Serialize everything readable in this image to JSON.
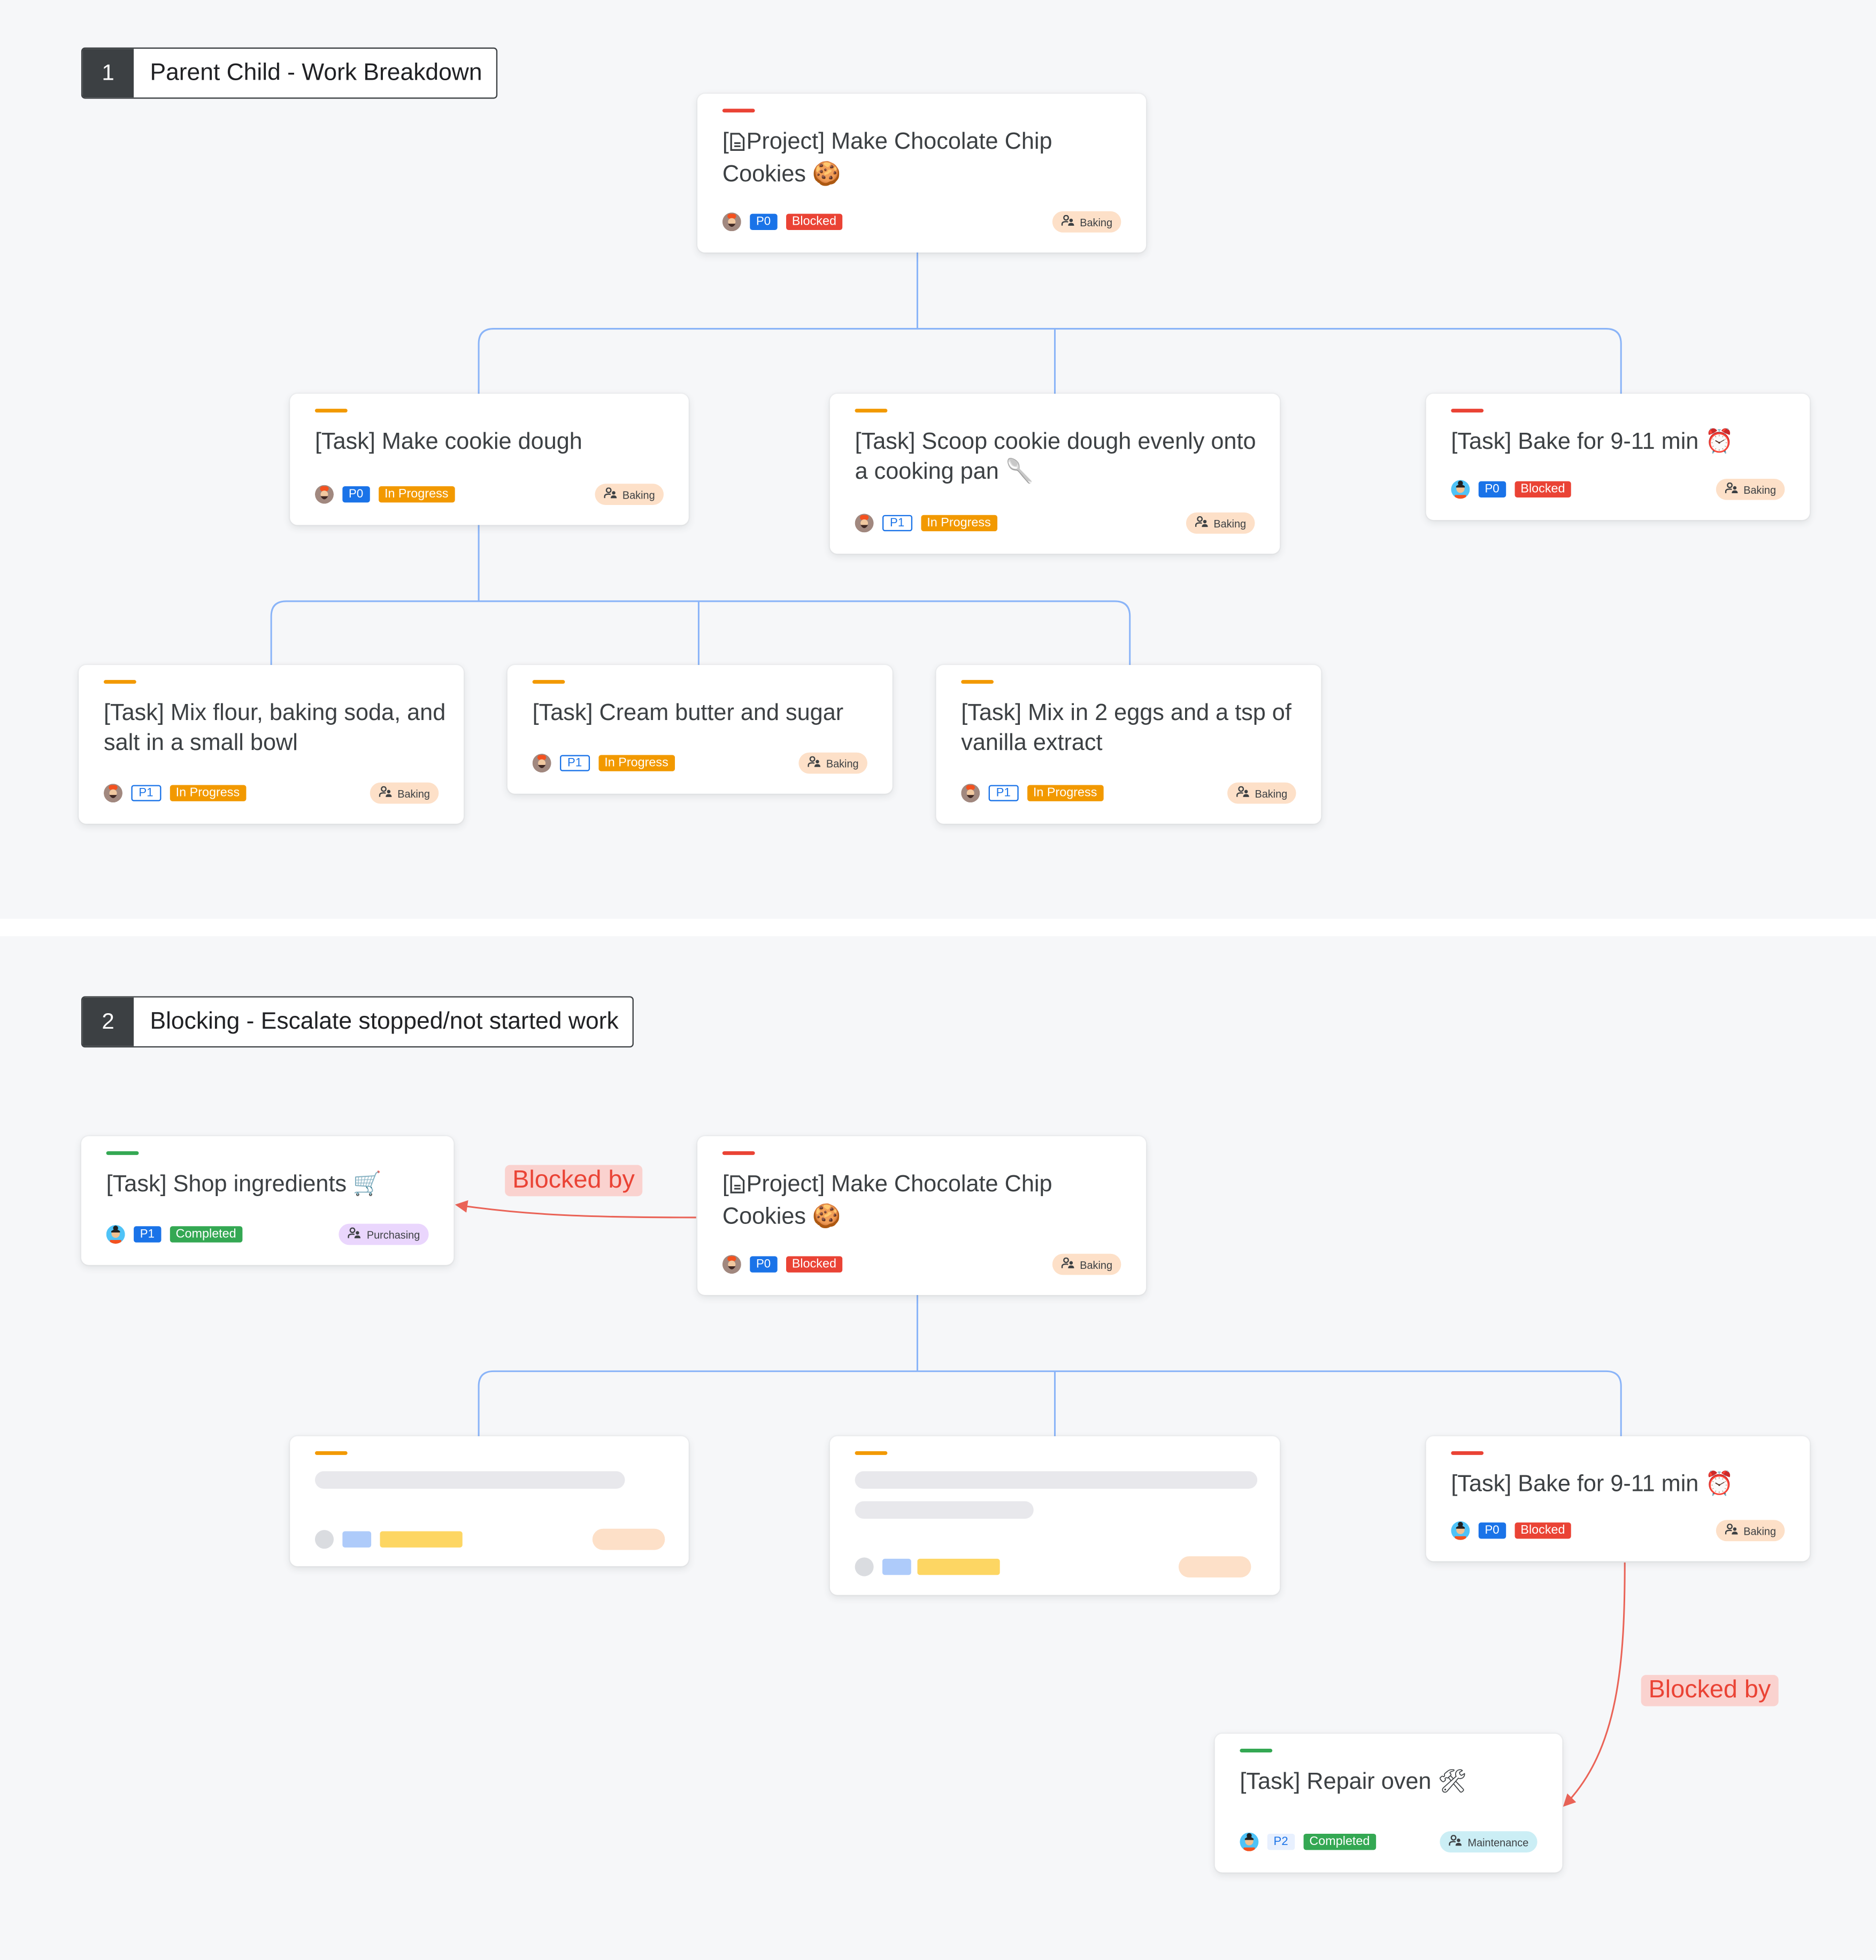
{
  "sections": [
    {
      "number": "1",
      "title": "Parent Child - Work Breakdown"
    },
    {
      "number": "2",
      "title": "Blocking - Escalate stopped/not started work"
    }
  ],
  "colors": {
    "blocked": "#ea4335",
    "in_progress": "#f29900",
    "completed": "#34a853",
    "priority": "#1a73e8",
    "connector": "#8ab4f8",
    "blocking_arrow": "#ea6357",
    "tag_baking": "#fde0c8",
    "tag_purchasing": "#ead6fd",
    "tag_maintenance": "#cbeef5"
  },
  "blocked_by_label": "Blocked by",
  "cards": [
    {
      "id": "proj1",
      "doc_icon": true,
      "title": "Project] Make Chocolate Chip Cookies",
      "emoji": "🍪",
      "avatar": "man-avatar",
      "priority": "P0",
      "priority_style": "filled",
      "status": "Blocked",
      "tag": "Baking"
    },
    {
      "id": "dough",
      "title": "[Task] Make cookie dough",
      "emoji": "",
      "avatar": "man-avatar",
      "priority": "P0",
      "priority_style": "filled",
      "status": "In Progress",
      "tag": "Baking"
    },
    {
      "id": "scoop",
      "title": "[Task] Scoop cookie dough evenly onto a cooking pan",
      "emoji": "🥄",
      "avatar": "man-avatar",
      "priority": "P1",
      "priority_style": "outline",
      "status": "In Progress",
      "tag": "Baking"
    },
    {
      "id": "bake1",
      "title": "[Task] Bake for 9-11 min",
      "emoji": "⏰",
      "avatar": "woman-avatar",
      "priority": "P0",
      "priority_style": "filled",
      "status": "Blocked",
      "tag": "Baking"
    },
    {
      "id": "mix",
      "title": "[Task] Mix flour, baking soda, and salt in a small bowl",
      "emoji": "",
      "avatar": "man-avatar",
      "priority": "P1",
      "priority_style": "outline",
      "status": "In Progress",
      "tag": "Baking"
    },
    {
      "id": "cream",
      "title": "[Task] Cream butter and sugar",
      "emoji": "",
      "avatar": "man-avatar",
      "priority": "P1",
      "priority_style": "outline",
      "status": "In Progress",
      "tag": "Baking"
    },
    {
      "id": "eggs",
      "title": "[Task] Mix in 2 eggs and a tsp of vanilla extract",
      "emoji": "",
      "avatar": "man-avatar",
      "priority": "P1",
      "priority_style": "outline",
      "status": "In Progress",
      "tag": "Baking"
    },
    {
      "id": "shop",
      "title": "[Task] Shop ingredients",
      "emoji": "🛒",
      "avatar": "woman-avatar",
      "priority": "P1",
      "priority_style": "filled",
      "status": "Completed",
      "tag": "Purchasing"
    },
    {
      "id": "proj2",
      "doc_icon": true,
      "title": "Project] Make Chocolate Chip Cookies",
      "emoji": "🍪",
      "avatar": "man-avatar",
      "priority": "P0",
      "priority_style": "filled",
      "status": "Blocked",
      "tag": "Baking"
    },
    {
      "id": "bake2",
      "title": "[Task] Bake for 9-11 min",
      "emoji": "⏰",
      "avatar": "woman-avatar",
      "priority": "P0",
      "priority_style": "filled",
      "status": "Blocked",
      "tag": "Baking"
    },
    {
      "id": "repair",
      "title": "[Task] Repair oven",
      "emoji": "🛠",
      "avatar": "woman-avatar",
      "priority": "P2",
      "priority_style": "soft",
      "status": "Completed",
      "tag": "Maintenance"
    }
  ]
}
